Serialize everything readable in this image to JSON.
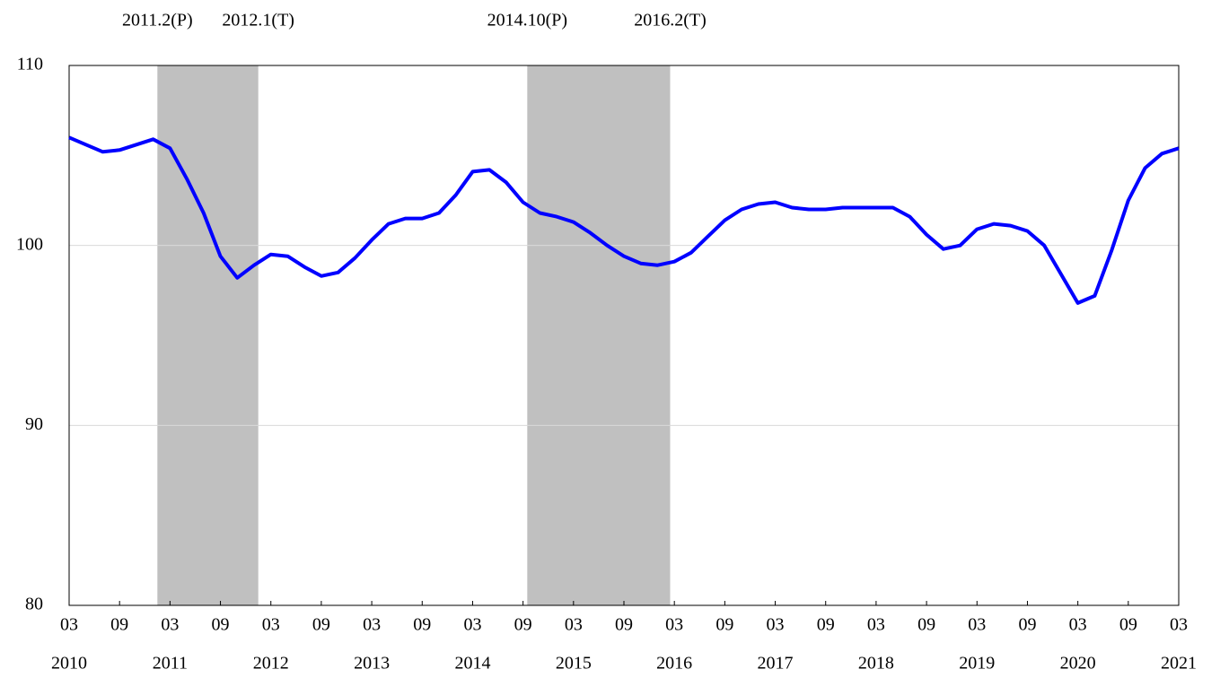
{
  "chart_data": {
    "type": "line",
    "x": [
      "2010-03",
      "2010-05",
      "2010-07",
      "2010-09",
      "2010-11",
      "2011-01",
      "2011-03",
      "2011-05",
      "2011-07",
      "2011-09",
      "2011-11",
      "2012-01",
      "2012-03",
      "2012-05",
      "2012-07",
      "2012-09",
      "2012-11",
      "2013-01",
      "2013-03",
      "2013-05",
      "2013-07",
      "2013-09",
      "2013-11",
      "2014-01",
      "2014-03",
      "2014-05",
      "2014-07",
      "2014-09",
      "2014-11",
      "2015-01",
      "2015-03",
      "2015-05",
      "2015-07",
      "2015-09",
      "2015-11",
      "2016-01",
      "2016-03",
      "2016-05",
      "2016-07",
      "2016-09",
      "2016-11",
      "2017-01",
      "2017-03",
      "2017-05",
      "2017-07",
      "2017-09",
      "2017-11",
      "2018-01",
      "2018-03",
      "2018-05",
      "2018-07",
      "2018-09",
      "2018-11",
      "2019-01",
      "2019-03",
      "2019-05",
      "2019-07",
      "2019-09",
      "2019-11",
      "2020-01",
      "2020-03",
      "2020-05",
      "2020-07",
      "2020-09",
      "2020-11",
      "2021-01",
      "2021-03"
    ],
    "series": [
      {
        "color": "#0000ff",
        "values": [
          106.0,
          105.6,
          105.2,
          105.3,
          105.6,
          105.9,
          105.4,
          103.7,
          101.8,
          99.4,
          98.2,
          98.9,
          99.5,
          99.4,
          98.8,
          98.3,
          98.5,
          99.3,
          100.3,
          101.2,
          101.5,
          101.5,
          101.8,
          102.8,
          104.1,
          104.2,
          103.5,
          102.4,
          101.8,
          101.6,
          101.3,
          100.7,
          100.0,
          99.4,
          99.0,
          98.9,
          99.1,
          99.6,
          100.5,
          101.4,
          102.0,
          102.3,
          102.4,
          102.1,
          102.0,
          102.0,
          102.1,
          102.1,
          102.1,
          102.1,
          101.6,
          100.6,
          99.8,
          100.0,
          100.9,
          101.2,
          101.1,
          100.8,
          100.0,
          98.4,
          96.8,
          97.2,
          99.7,
          102.5,
          104.3,
          105.1,
          105.4
        ]
      }
    ],
    "xlim": [
      "2010-03",
      "2021-03"
    ],
    "xticks": [
      {
        "value": "2010-03",
        "label": "03"
      },
      {
        "value": "2010-09",
        "label": "09"
      },
      {
        "value": "2011-03",
        "label": "03"
      },
      {
        "value": "2011-09",
        "label": "09"
      },
      {
        "value": "2012-03",
        "label": "03"
      },
      {
        "value": "2012-09",
        "label": "09"
      },
      {
        "value": "2013-03",
        "label": "03"
      },
      {
        "value": "2013-09",
        "label": "09"
      },
      {
        "value": "2014-03",
        "label": "03"
      },
      {
        "value": "2014-09",
        "label": "09"
      },
      {
        "value": "2015-03",
        "label": "03"
      },
      {
        "value": "2015-09",
        "label": "09"
      },
      {
        "value": "2016-03",
        "label": "03"
      },
      {
        "value": "2016-09",
        "label": "09"
      },
      {
        "value": "2017-03",
        "label": "03"
      },
      {
        "value": "2017-09",
        "label": "09"
      },
      {
        "value": "2018-03",
        "label": "03"
      },
      {
        "value": "2018-09",
        "label": "09"
      },
      {
        "value": "2019-03",
        "label": "03"
      },
      {
        "value": "2019-09",
        "label": "09"
      },
      {
        "value": "2020-03",
        "label": "03"
      },
      {
        "value": "2020-09",
        "label": "09"
      },
      {
        "value": "2021-03",
        "label": "03"
      }
    ],
    "year_labels": [
      {
        "value": "2010-03",
        "label": "2010"
      },
      {
        "value": "2011-03",
        "label": "2011"
      },
      {
        "value": "2012-03",
        "label": "2012"
      },
      {
        "value": "2013-03",
        "label": "2013"
      },
      {
        "value": "2014-03",
        "label": "2014"
      },
      {
        "value": "2015-03",
        "label": "2015"
      },
      {
        "value": "2016-03",
        "label": "2016"
      },
      {
        "value": "2017-03",
        "label": "2017"
      },
      {
        "value": "2018-03",
        "label": "2018"
      },
      {
        "value": "2019-03",
        "label": "2019"
      },
      {
        "value": "2020-03",
        "label": "2020"
      },
      {
        "value": "2021-03",
        "label": "2021"
      }
    ],
    "shaded_periods": [
      {
        "start": "2011-02",
        "end": "2012-01",
        "start_label": "2011.2(P)",
        "end_label": "2012.1(T)",
        "color": "#c0c0c0"
      },
      {
        "start": "2014-10",
        "end": "2016-02",
        "start_label": "2014.10(P)",
        "end_label": "2016.2(T)",
        "color": "#c0c0c0"
      }
    ],
    "ylim": [
      80,
      110
    ],
    "yticks": [
      80,
      90,
      100,
      110
    ],
    "grid": true
  }
}
